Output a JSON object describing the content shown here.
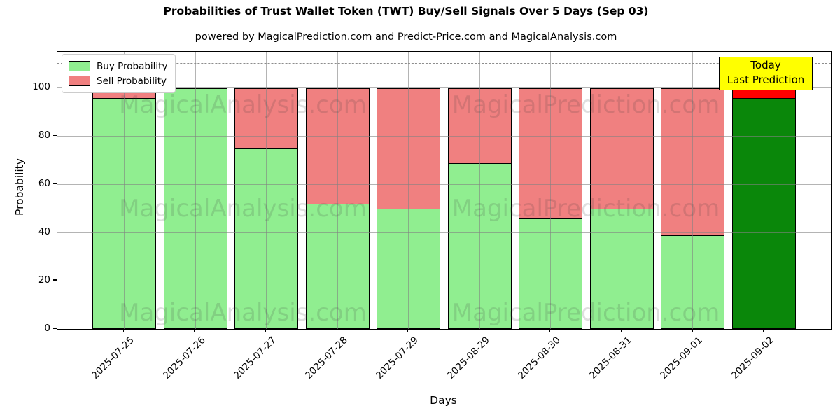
{
  "chart_data": {
    "type": "bar",
    "stacked": true,
    "title": "Probabilities of Trust Wallet Token (TWT) Buy/Sell Signals Over 5 Days (Sep 03)",
    "subtitle": "powered by MagicalPrediction.com and Predict-Price.com and MagicalAnalysis.com",
    "xlabel": "Days",
    "ylabel": "Probability",
    "ylim": [
      0,
      115
    ],
    "yticks": [
      0,
      20,
      40,
      60,
      80,
      100
    ],
    "grid": true,
    "dashed_line_y": 110,
    "categories": [
      "2025-07-25",
      "2025-07-26",
      "2025-07-27",
      "2025-07-28",
      "2025-07-29",
      "2025-08-29",
      "2025-08-30",
      "2025-08-31",
      "2025-09-01",
      "2025-09-02"
    ],
    "series": [
      {
        "name": "Buy Probability",
        "color": "#90EE90",
        "values": [
          96,
          100,
          75,
          52,
          50,
          69,
          46,
          50,
          39,
          96
        ]
      },
      {
        "name": "Sell Probability",
        "color": "#F08080",
        "values": [
          4,
          0,
          25,
          48,
          50,
          31,
          54,
          50,
          61,
          4
        ]
      }
    ],
    "today_bar": {
      "index": 9,
      "buy_color": "#0A870A",
      "sell_color": "#FF0000"
    },
    "legend": {
      "position": "upper left"
    },
    "annotation": {
      "line1": "Today",
      "line2": "Last Prediction",
      "bg_color": "#FFFF00"
    },
    "watermarks": {
      "left_text": "MagicalAnalysis.com",
      "right_text": "MagicalPrediction.com",
      "color": "#3C3C3C"
    }
  }
}
